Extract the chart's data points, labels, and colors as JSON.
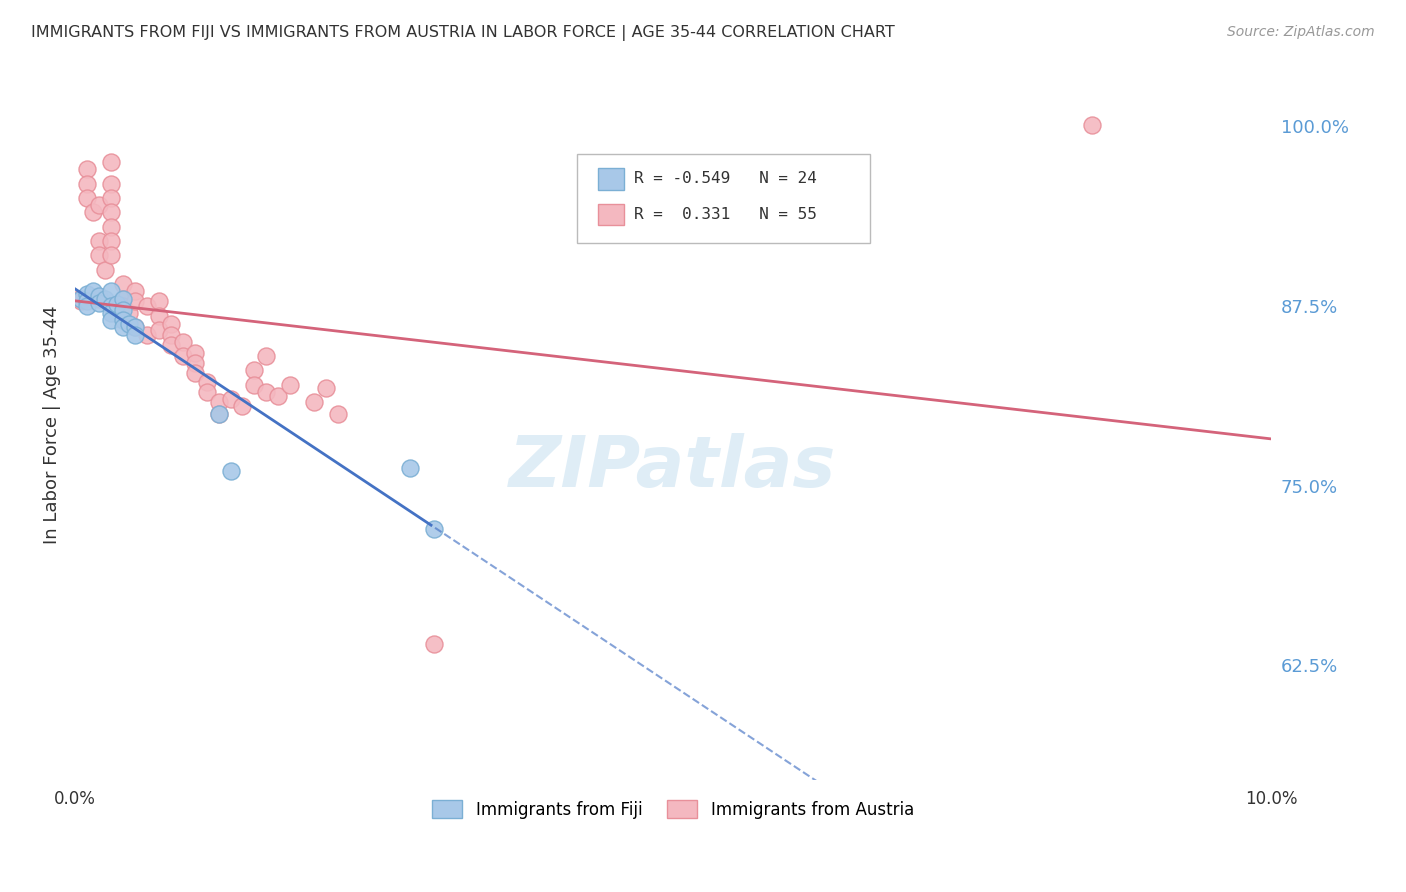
{
  "title": "IMMIGRANTS FROM FIJI VS IMMIGRANTS FROM AUSTRIA IN LABOR FORCE | AGE 35-44 CORRELATION CHART",
  "source": "Source: ZipAtlas.com",
  "ylabel": "In Labor Force | Age 35-44",
  "xlim": [
    0.0,
    0.1
  ],
  "ylim": [
    0.545,
    1.04
  ],
  "yticks_right": [
    0.625,
    0.75,
    0.875,
    1.0
  ],
  "ytick_labels_right": [
    "62.5%",
    "75.0%",
    "87.5%",
    "100.0%"
  ],
  "fiji_R": -0.549,
  "fiji_N": 24,
  "austria_R": 0.331,
  "austria_N": 55,
  "fiji_color": "#a8c8e8",
  "austria_color": "#f4b8c0",
  "fiji_edge_color": "#7bafd4",
  "austria_edge_color": "#e8909a",
  "fiji_line_color": "#4472c4",
  "austria_line_color": "#d4637a",
  "fiji_scatter_x": [
    0.0005,
    0.001,
    0.001,
    0.001,
    0.0015,
    0.002,
    0.002,
    0.0025,
    0.003,
    0.003,
    0.003,
    0.003,
    0.0035,
    0.004,
    0.004,
    0.004,
    0.004,
    0.0045,
    0.005,
    0.005,
    0.012,
    0.013,
    0.028,
    0.03
  ],
  "fiji_scatter_y": [
    0.88,
    0.883,
    0.878,
    0.875,
    0.885,
    0.882,
    0.877,
    0.88,
    0.885,
    0.875,
    0.87,
    0.865,
    0.876,
    0.88,
    0.872,
    0.865,
    0.86,
    0.862,
    0.86,
    0.855,
    0.8,
    0.76,
    0.762,
    0.72
  ],
  "austria_scatter_x": [
    0.0003,
    0.0005,
    0.001,
    0.001,
    0.001,
    0.0015,
    0.002,
    0.002,
    0.002,
    0.002,
    0.0025,
    0.003,
    0.003,
    0.003,
    0.003,
    0.003,
    0.003,
    0.003,
    0.004,
    0.004,
    0.004,
    0.0045,
    0.005,
    0.005,
    0.005,
    0.006,
    0.006,
    0.007,
    0.007,
    0.007,
    0.008,
    0.008,
    0.008,
    0.009,
    0.009,
    0.01,
    0.01,
    0.01,
    0.011,
    0.011,
    0.012,
    0.012,
    0.013,
    0.014,
    0.015,
    0.015,
    0.016,
    0.016,
    0.017,
    0.018,
    0.02,
    0.021,
    0.022,
    0.03,
    0.085
  ],
  "austria_scatter_y": [
    0.88,
    0.878,
    0.97,
    0.96,
    0.95,
    0.94,
    0.945,
    0.92,
    0.91,
    0.88,
    0.9,
    0.975,
    0.96,
    0.95,
    0.94,
    0.93,
    0.92,
    0.91,
    0.89,
    0.88,
    0.875,
    0.87,
    0.885,
    0.878,
    0.86,
    0.875,
    0.855,
    0.878,
    0.868,
    0.858,
    0.862,
    0.855,
    0.848,
    0.85,
    0.84,
    0.842,
    0.835,
    0.828,
    0.822,
    0.815,
    0.808,
    0.8,
    0.81,
    0.805,
    0.83,
    0.82,
    0.815,
    0.84,
    0.812,
    0.82,
    0.808,
    0.818,
    0.8,
    0.64,
    1.001
  ],
  "background_color": "#ffffff",
  "grid_color": "#cccccc",
  "watermark_text": "ZIPatlas",
  "watermark_color": "#c5dff0",
  "legend_fiji_text": "R = -0.549   N = 24",
  "legend_austria_text": "R =  0.331   N = 55",
  "bottom_legend_fiji": "Immigrants from Fiji",
  "bottom_legend_austria": "Immigrants from Austria"
}
